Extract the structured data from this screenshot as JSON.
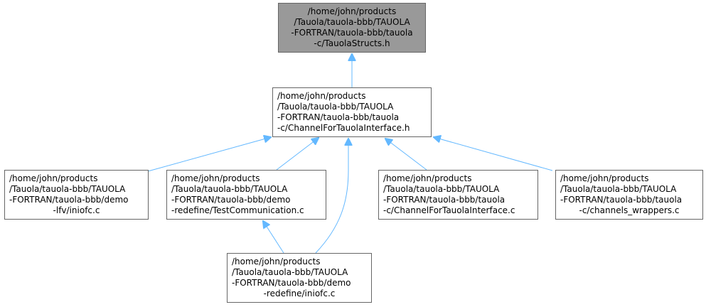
{
  "diagram": {
    "colors": {
      "root_fill": "#999999",
      "node_border": "#666666",
      "edge": "#63b8ff"
    },
    "nodes": {
      "root": {
        "lines": [
          "/home/john/products",
          "/Tauola/tauola-bbb/TAUOLA",
          "-FORTRAN/tauola-bbb/tauola",
          "-c/TauolaStructs.h"
        ]
      },
      "channel_interface_h": {
        "lines": [
          "/home/john/products",
          "/Tauola/tauola-bbb/TAUOLA",
          "-FORTRAN/tauola-bbb/tauola",
          "-c/ChannelForTauolaInterface.h"
        ]
      },
      "demo_lfv_iniofc": {
        "lines": [
          "/home/john/products",
          "/Tauola/tauola-bbb/TAUOLA",
          "-FORTRAN/tauola-bbb/demo",
          "-lfv/iniofc.c"
        ]
      },
      "test_communication": {
        "lines": [
          "/home/john/products",
          "/Tauola/tauola-bbb/TAUOLA",
          "-FORTRAN/tauola-bbb/demo",
          "-redefine/TestCommunication.c"
        ]
      },
      "channel_interface_c": {
        "lines": [
          "/home/john/products",
          "/Tauola/tauola-bbb/TAUOLA",
          "-FORTRAN/tauola-bbb/tauola",
          "-c/ChannelForTauolaInterface.c"
        ]
      },
      "channels_wrappers": {
        "lines": [
          "/home/john/products",
          "/Tauola/tauola-bbb/TAUOLA",
          "-FORTRAN/tauola-bbb/tauola",
          "-c/channels_wrappers.c"
        ]
      },
      "demo_redefine_iniofc": {
        "lines": [
          "/home/john/products",
          "/Tauola/tauola-bbb/TAUOLA",
          "-FORTRAN/tauola-bbb/demo",
          "-redefine/iniofc.c"
        ]
      }
    },
    "edges": [
      {
        "from": "channel_interface_h",
        "to": "root"
      },
      {
        "from": "demo_lfv_iniofc",
        "to": "channel_interface_h"
      },
      {
        "from": "test_communication",
        "to": "channel_interface_h"
      },
      {
        "from": "demo_redefine_iniofc",
        "to": "channel_interface_h"
      },
      {
        "from": "channel_interface_c",
        "to": "channel_interface_h"
      },
      {
        "from": "channels_wrappers",
        "to": "channel_interface_h"
      },
      {
        "from": "demo_redefine_iniofc",
        "to": "test_communication"
      }
    ]
  }
}
